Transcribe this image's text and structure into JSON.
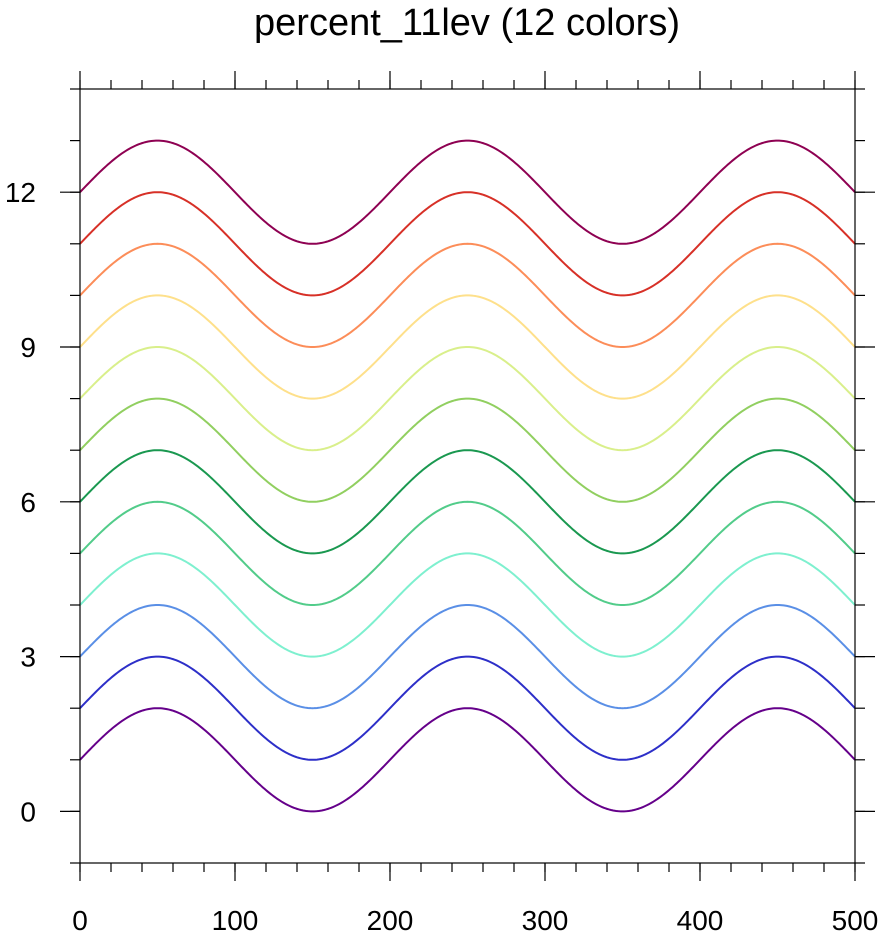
{
  "chart_data": {
    "type": "line",
    "title": "percent_11lev (12 colors)",
    "xlabel": "",
    "ylabel": "",
    "xlim": [
      0,
      500
    ],
    "ylim": [
      -1,
      14
    ],
    "xticks": [
      0,
      100,
      200,
      300,
      400,
      500
    ],
    "yticks": [
      0,
      3,
      6,
      9,
      12
    ],
    "x_minor_step": 20,
    "y_minor_step": 1,
    "grid": false,
    "legend": "none",
    "curve": "y = offset + sin(2*pi*x/200)",
    "series": [
      {
        "offset": 1,
        "color": "#65008a"
      },
      {
        "offset": 2,
        "color": "#2d2fc8"
      },
      {
        "offset": 3,
        "color": "#5a8fe6"
      },
      {
        "offset": 4,
        "color": "#7ef0cf"
      },
      {
        "offset": 5,
        "color": "#52cc8a"
      },
      {
        "offset": 6,
        "color": "#1a9850"
      },
      {
        "offset": 7,
        "color": "#91cf60"
      },
      {
        "offset": 8,
        "color": "#d9ef8b"
      },
      {
        "offset": 9,
        "color": "#fee08b"
      },
      {
        "offset": 10,
        "color": "#fc8d59"
      },
      {
        "offset": 11,
        "color": "#d73027"
      },
      {
        "offset": 12,
        "color": "#8e0152"
      }
    ]
  }
}
